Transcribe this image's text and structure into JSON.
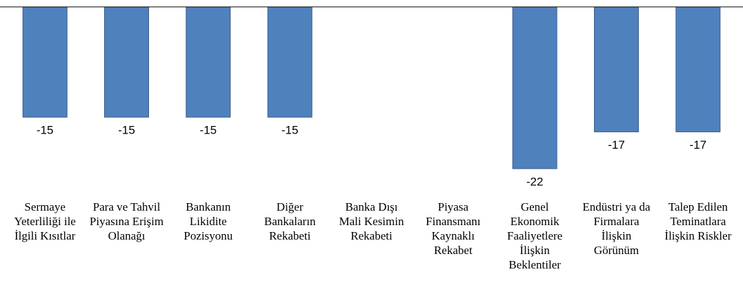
{
  "chart_data": {
    "type": "bar",
    "categories": [
      "Sermaye Yeterliliği ile İlgili Kısıtlar",
      "Para ve Tahvil Piyasına Erişim Olanağı",
      "Bankanın Likidite Pozisyonu",
      "Diğer Bankaların Rekabeti",
      "Banka Dışı Mali Kesimin Rekabeti",
      "Piyasa Finansmanı Kaynaklı Rekabet",
      "Genel Ekonomik Faaliyetlere İlişkin Beklentiler",
      "Endüstri ya da Firmalara İlişkin Görünüm",
      "Talep Edilen Teminatlara İlişkin Riskler"
    ],
    "values": [
      -15,
      -15,
      -15,
      -15,
      null,
      null,
      -22,
      -17,
      -17
    ],
    "color": "#4f81bd",
    "ylim": [
      -25,
      0
    ]
  }
}
